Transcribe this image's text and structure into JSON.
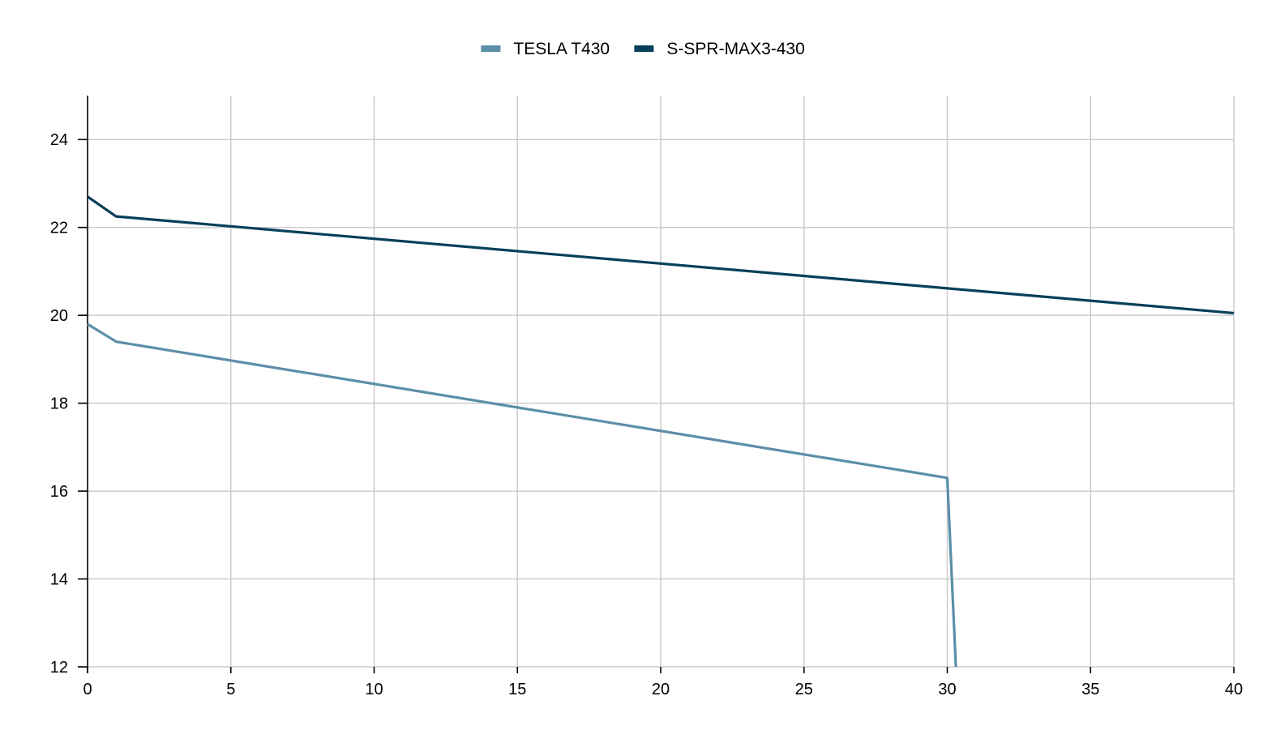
{
  "chart_data": {
    "type": "line",
    "title": "",
    "xlabel": "",
    "ylabel": "",
    "xlim": [
      0,
      40
    ],
    "ylim": [
      12,
      25
    ],
    "xticks": [
      0,
      5,
      10,
      15,
      20,
      25,
      30,
      35,
      40
    ],
    "yticks": [
      12,
      14,
      16,
      18,
      20,
      22,
      24
    ],
    "grid": true,
    "legend_position": "top-center",
    "series": [
      {
        "name": "TESLA T430",
        "color": "#5b8fa8",
        "x": [
          0,
          1,
          30,
          30.3
        ],
        "y": [
          19.8,
          19.4,
          16.3,
          12
        ]
      },
      {
        "name": "S-SPR-MAX3-430",
        "color": "#073f5a",
        "x": [
          0,
          1,
          40
        ],
        "y": [
          22.7,
          22.25,
          20.05
        ]
      }
    ]
  }
}
